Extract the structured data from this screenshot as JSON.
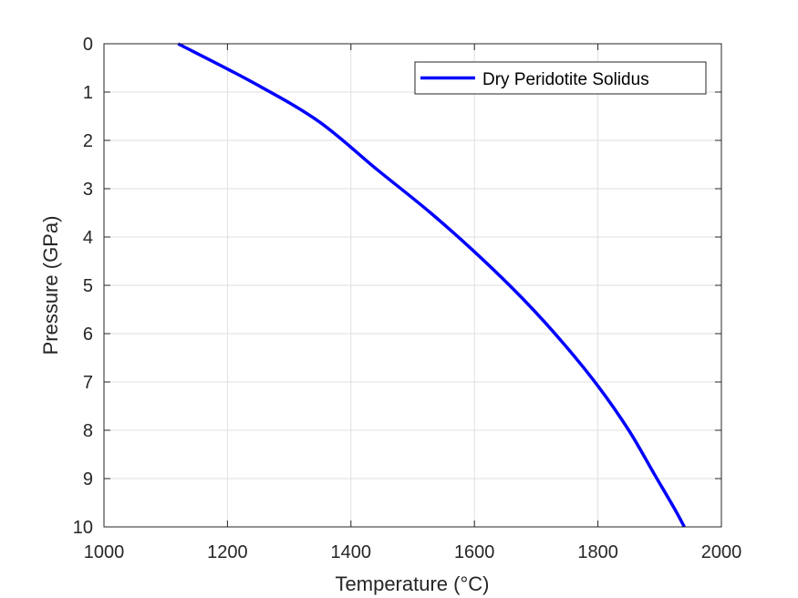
{
  "chart_data": {
    "type": "line",
    "title": "",
    "xlabel": "Temperature (°C)",
    "ylabel": "Pressure (GPa)",
    "xlim": [
      1000,
      2000
    ],
    "ylim": [
      0,
      10
    ],
    "y_reversed": true,
    "x_ticks": [
      1000,
      1200,
      1400,
      1600,
      1800,
      2000
    ],
    "y_ticks": [
      0,
      1,
      2,
      3,
      4,
      5,
      6,
      7,
      8,
      9,
      10
    ],
    "grid": true,
    "legend_position": "top-right",
    "series": [
      {
        "name": "Dry Peridotite Solidus",
        "color": "#0000ff",
        "x": [
          1120,
          1241,
          1347,
          1442,
          1529,
          1608,
          1680,
          1744,
          1801,
          1850,
          1891,
          1923,
          1940
        ],
        "y": [
          0,
          0.8,
          1.6,
          2.6,
          3.5,
          4.4,
          5.3,
          6.2,
          7.1,
          8.0,
          8.9,
          9.6,
          10
        ]
      }
    ]
  }
}
